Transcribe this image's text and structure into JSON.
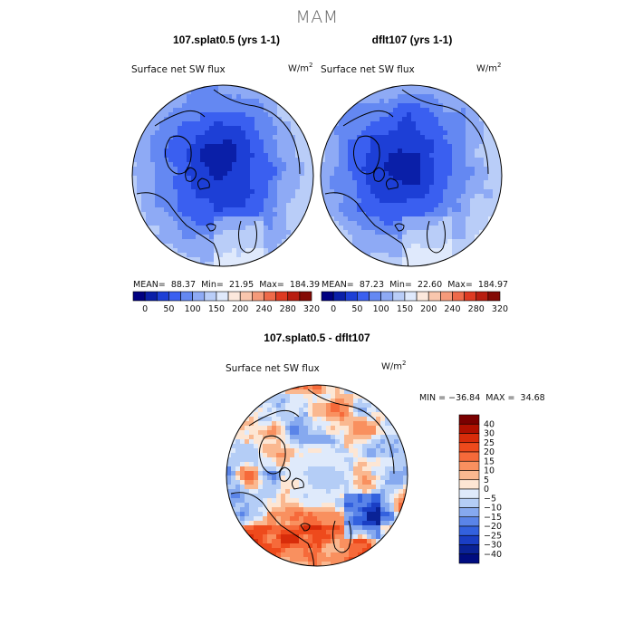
{
  "page_title": "MAM",
  "panels": [
    {
      "title": "107.splat0.5 (yrs 1-1)",
      "variable": "Surface net SW flux",
      "units_base": "W/m",
      "units_exp": "2",
      "stats": {
        "mean_label": "MEAN=",
        "mean": "88.37",
        "min_label": "Min=",
        "min": "21.95",
        "max_label": "Max=",
        "max": "184.39"
      }
    },
    {
      "title": "dflt107 (yrs 1-1)",
      "variable": "Surface net SW flux",
      "units_base": "W/m",
      "units_exp": "2",
      "stats": {
        "mean_label": "MEAN=",
        "mean": "87.23",
        "min_label": "Min=",
        "min": "22.60",
        "max_label": "Max=",
        "max": "184.97"
      }
    }
  ],
  "diff_panel": {
    "title": "107.splat0.5 - dflt107",
    "variable": "Surface net SW flux",
    "units_base": "W/m",
    "units_exp": "2",
    "min_max": "MIN = −36.84  MAX =  34.68"
  },
  "chart_data": [
    {
      "type": "heatmap",
      "title": "107.splat0.5 (yrs 1-1)",
      "projection": "north polar stereographic",
      "variable": "Surface net SW flux",
      "units": "W/m2",
      "mean": 88.37,
      "min": 21.95,
      "max": 184.39,
      "colorbar": {
        "levels": [
          0,
          25,
          50,
          75,
          100,
          125,
          150,
          175,
          200,
          220,
          240,
          260,
          280,
          300,
          320
        ],
        "tick_labels": [
          "0",
          "50",
          "100",
          "150",
          "200",
          "240",
          "280",
          "320"
        ],
        "colors": [
          "#000080",
          "#0a1fa8",
          "#1d3fd6",
          "#3a5ff0",
          "#6488f2",
          "#8eaaf5",
          "#b9cdf8",
          "#dfe9fc",
          "#fce8dc",
          "#f9c6ad",
          "#f59a7a",
          "#ee6a4a",
          "#de3a22",
          "#b81d10",
          "#840a05"
        ]
      }
    },
    {
      "type": "heatmap",
      "title": "dflt107 (yrs 1-1)",
      "projection": "north polar stereographic",
      "variable": "Surface net SW flux",
      "units": "W/m2",
      "mean": 87.23,
      "min": 22.6,
      "max": 184.97,
      "colorbar": {
        "levels": [
          0,
          25,
          50,
          75,
          100,
          125,
          150,
          175,
          200,
          220,
          240,
          260,
          280,
          300,
          320
        ],
        "tick_labels": [
          "0",
          "50",
          "100",
          "150",
          "200",
          "240",
          "280",
          "320"
        ],
        "colors": [
          "#000080",
          "#0a1fa8",
          "#1d3fd6",
          "#3a5ff0",
          "#6488f2",
          "#8eaaf5",
          "#b9cdf8",
          "#dfe9fc",
          "#fce8dc",
          "#f9c6ad",
          "#f59a7a",
          "#ee6a4a",
          "#de3a22",
          "#b81d10",
          "#840a05"
        ]
      }
    },
    {
      "type": "heatmap",
      "title": "107.splat0.5 - dflt107",
      "projection": "north polar stereographic",
      "variable": "Surface net SW flux",
      "units": "W/m2",
      "min": -36.84,
      "max": 34.68,
      "colorbar": {
        "orientation": "vertical",
        "tick_labels": [
          "40",
          "30",
          "25",
          "20",
          "15",
          "10",
          "5",
          "0",
          "−5",
          "−10",
          "−15",
          "−20",
          "−25",
          "−30",
          "−40"
        ],
        "colors": [
          "#7a0000",
          "#b01000",
          "#d82c0a",
          "#ee4a1c",
          "#f66a3a",
          "#f9905f",
          "#fab890",
          "#fde6d4",
          "#dfeafb",
          "#b4cdf6",
          "#86a9ef",
          "#5a84e8",
          "#3361de",
          "#1a3ec4",
          "#0a2296",
          "#000c80"
        ]
      }
    }
  ]
}
